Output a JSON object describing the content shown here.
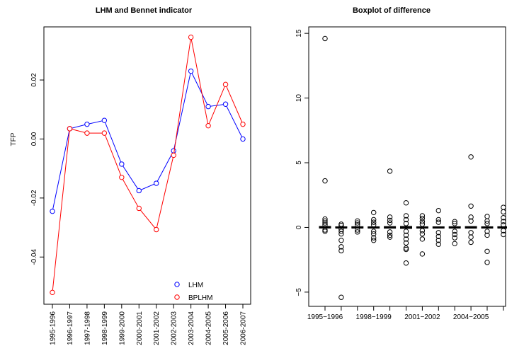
{
  "chart_data": [
    {
      "type": "line",
      "title": "LHM and Bennet indicator",
      "xlabel": "",
      "ylabel": "TFP",
      "categories": [
        "1995-1996",
        "1996-1997",
        "1997-1998",
        "1998-1999",
        "1999-2000",
        "2000-2001",
        "2001-2002",
        "2002-2003",
        "2003-2004",
        "2004-2005",
        "2005-2006",
        "2006-2007"
      ],
      "yticks": [
        {
          "v": -0.04,
          "label": "-0.04"
        },
        {
          "v": -0.02,
          "label": "-0.02"
        },
        {
          "v": 0.0,
          "label": "0.00"
        },
        {
          "v": 0.02,
          "label": "0.02"
        }
      ],
      "ylim": [
        -0.056,
        0.038
      ],
      "legend_position": "bottom-right",
      "series": [
        {
          "name": "LHM",
          "color": "#0000ff",
          "values": [
            -0.0245,
            0.0035,
            0.005,
            0.0063,
            -0.0085,
            -0.0175,
            -0.015,
            -0.004,
            0.023,
            0.011,
            0.0118,
            0.0
          ]
        },
        {
          "name": "BPLHM",
          "color": "#ff0000",
          "values": [
            -0.052,
            0.0035,
            0.002,
            0.002,
            -0.013,
            -0.0235,
            -0.0307,
            -0.0055,
            0.0345,
            0.0045,
            0.0185,
            0.005
          ]
        }
      ]
    },
    {
      "type": "boxplot",
      "title": "Boxplot of difference",
      "xlabel": "",
      "ylabel": "",
      "ylim": [
        -6.1,
        15.5
      ],
      "yticks": [
        {
          "v": -5,
          "label": "−5"
        },
        {
          "v": 0,
          "label": "0"
        },
        {
          "v": 5,
          "label": "5"
        },
        {
          "v": 10,
          "label": "10"
        },
        {
          "v": 15,
          "label": "15"
        }
      ],
      "categories": [
        "1995-1996",
        "1996-1997",
        "1997-1998",
        "1998-1999",
        "1999-2000",
        "2000-2001",
        "2001-2002",
        "2002-2003",
        "2003-2004",
        "2004-2005",
        "2005-2006",
        "2006-2007"
      ],
      "xtick_labels": [
        "1995−1996",
        "",
        "1998−1999",
        "",
        "2001−2002",
        "",
        "2004−2005",
        ""
      ],
      "boxes": [
        {
          "median": 0.02,
          "q1": -0.05,
          "q3": 0.08,
          "outliers": [
            14.6,
            3.6,
            0.65,
            0.5,
            0.35,
            0.2,
            -0.2,
            -0.3
          ]
        },
        {
          "median": 0.0,
          "q1": -0.04,
          "q3": 0.05,
          "outliers": [
            0.25,
            0.15,
            -0.15,
            -0.3,
            -0.5,
            -1.0,
            -1.5,
            -1.8,
            -5.4
          ]
        },
        {
          "median": 0.0,
          "q1": -0.05,
          "q3": 0.06,
          "outliers": [
            0.5,
            0.35,
            0.2,
            -0.2,
            -0.35
          ]
        },
        {
          "median": 0.0,
          "q1": -0.05,
          "q3": 0.05,
          "outliers": [
            1.15,
            0.6,
            0.4,
            0.2,
            -0.3,
            -0.5,
            -0.8,
            -1.0
          ]
        },
        {
          "median": 0.0,
          "q1": -0.06,
          "q3": 0.07,
          "outliers": [
            4.35,
            0.8,
            0.55,
            0.35,
            -0.35,
            -0.6,
            -0.75
          ]
        },
        {
          "median": 0.0,
          "q1": -0.08,
          "q3": 0.08,
          "outliers": [
            1.9,
            0.9,
            0.6,
            0.3,
            -0.3,
            -0.6,
            -0.9,
            -1.2,
            -1.6,
            -1.7,
            -2.75
          ]
        },
        {
          "median": 0.0,
          "q1": -0.05,
          "q3": 0.05,
          "outliers": [
            0.9,
            0.7,
            0.45,
            0.25,
            -0.25,
            -0.5,
            -0.9,
            -2.05
          ]
        },
        {
          "median": 0.0,
          "q1": -0.05,
          "q3": 0.05,
          "outliers": [
            1.3,
            0.6,
            0.4,
            -0.4,
            -0.7,
            -1.0,
            -1.3
          ]
        },
        {
          "median": 0.0,
          "q1": -0.05,
          "q3": 0.06,
          "outliers": [
            0.45,
            0.3,
            -0.3,
            -0.55,
            -0.8,
            -1.25
          ]
        },
        {
          "median": 0.0,
          "q1": -0.06,
          "q3": 0.07,
          "outliers": [
            5.45,
            1.65,
            0.8,
            0.5,
            -0.4,
            -0.75,
            -1.15
          ]
        },
        {
          "median": 0.0,
          "q1": -0.05,
          "q3": 0.05,
          "outliers": [
            0.85,
            0.5,
            0.3,
            -0.3,
            -0.6,
            -1.85,
            -2.7
          ]
        },
        {
          "median": 0.0,
          "q1": -0.05,
          "q3": 0.06,
          "outliers": [
            1.55,
            1.2,
            0.75,
            0.45,
            0.2,
            -0.25,
            -0.55
          ]
        }
      ]
    }
  ]
}
